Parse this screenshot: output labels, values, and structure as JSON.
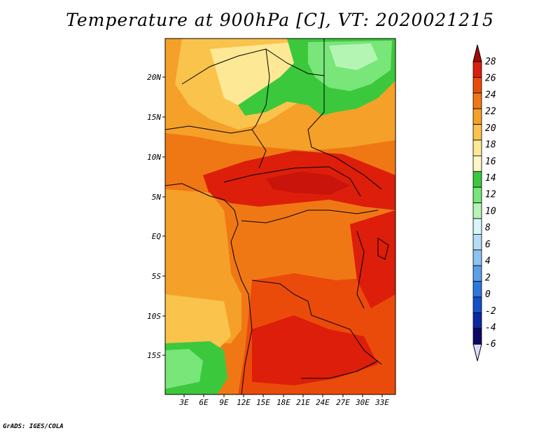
{
  "title": "Temperature at 900hPa [C], VT: 2020021215",
  "credit": "GrADS: IGES/COLA",
  "map": {
    "lat_labels": [
      "20N",
      "15N",
      "10N",
      "5N",
      "EQ",
      "5S",
      "10S",
      "15S"
    ],
    "lon_labels": [
      "3E",
      "6E",
      "9E",
      "12E",
      "15E",
      "18E",
      "21E",
      "24E",
      "27E",
      "30E",
      "33E"
    ]
  },
  "colorbar": {
    "labels": [
      "28",
      "26",
      "24",
      "22",
      "20",
      "18",
      "16",
      "14",
      "12",
      "10",
      "8",
      "6",
      "4",
      "2",
      "0",
      "-2",
      "-4",
      "-6"
    ],
    "colors": [
      "#a50a0a",
      "#dc1e0a",
      "#eb4b0a",
      "#f07814",
      "#f5a028",
      "#fac34b",
      "#fde896",
      "#fdf7c8",
      "#3cc83c",
      "#78e678",
      "#b4f5b4",
      "#d7f5fa",
      "#b4dcf5",
      "#8cc3f0",
      "#5aa0e6",
      "#2d78dc",
      "#1450c8",
      "#0a28a0",
      "#0a0a64",
      "#dcdcfa"
    ]
  }
}
